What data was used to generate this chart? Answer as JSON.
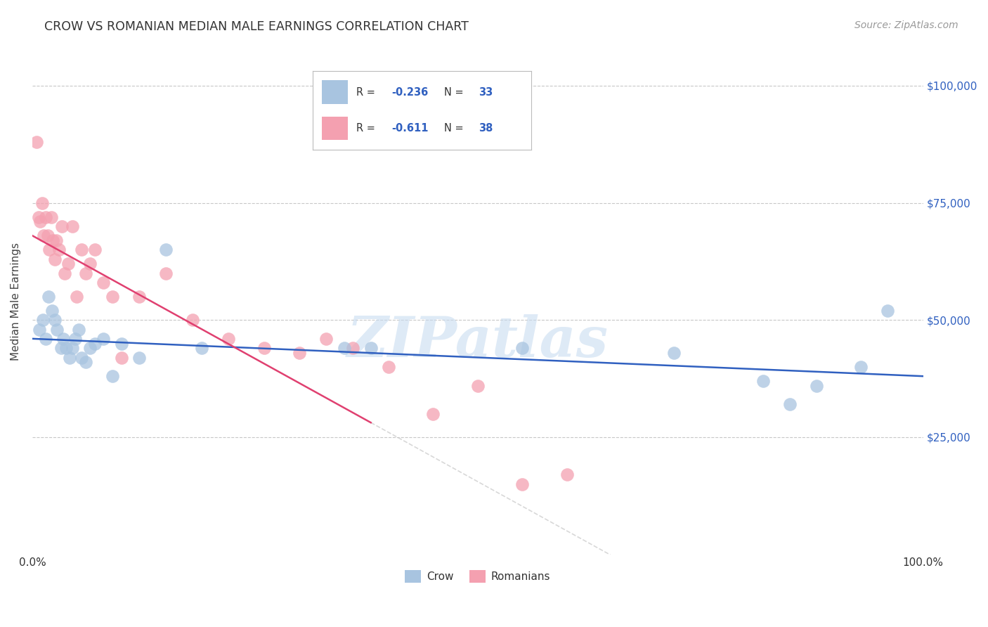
{
  "title": "CROW VS ROMANIAN MEDIAN MALE EARNINGS CORRELATION CHART",
  "source": "Source: ZipAtlas.com",
  "ylabel": "Median Male Earnings",
  "background_color": "#ffffff",
  "grid_color": "#c8c8c8",
  "crow_color": "#a8c4e0",
  "romanian_color": "#f4a0b0",
  "crow_line_color": "#3060c0",
  "romanian_line_color": "#e04070",
  "crow_R": "-0.236",
  "crow_N": "33",
  "romanian_R": "-0.611",
  "romanian_N": "38",
  "watermark": "ZIPatlas",
  "crow_points_x": [
    0.008,
    0.012,
    0.015,
    0.018,
    0.022,
    0.025,
    0.028,
    0.032,
    0.035,
    0.038,
    0.042,
    0.045,
    0.048,
    0.052,
    0.055,
    0.06,
    0.065,
    0.07,
    0.08,
    0.09,
    0.1,
    0.12,
    0.15,
    0.19,
    0.35,
    0.38,
    0.55,
    0.72,
    0.82,
    0.85,
    0.88,
    0.93,
    0.96
  ],
  "crow_points_y": [
    48000,
    50000,
    46000,
    55000,
    52000,
    50000,
    48000,
    44000,
    46000,
    44000,
    42000,
    44000,
    46000,
    48000,
    42000,
    41000,
    44000,
    45000,
    46000,
    38000,
    45000,
    42000,
    65000,
    44000,
    44000,
    44000,
    44000,
    43000,
    37000,
    32000,
    36000,
    40000,
    52000
  ],
  "romanian_points_x": [
    0.005,
    0.007,
    0.009,
    0.011,
    0.013,
    0.015,
    0.017,
    0.019,
    0.021,
    0.023,
    0.025,
    0.027,
    0.03,
    0.033,
    0.036,
    0.04,
    0.045,
    0.05,
    0.055,
    0.06,
    0.065,
    0.07,
    0.08,
    0.09,
    0.1,
    0.12,
    0.15,
    0.18,
    0.22,
    0.26,
    0.3,
    0.33,
    0.36,
    0.4,
    0.45,
    0.5,
    0.55,
    0.6
  ],
  "romanian_points_y": [
    88000,
    72000,
    71000,
    75000,
    68000,
    72000,
    68000,
    65000,
    72000,
    67000,
    63000,
    67000,
    65000,
    70000,
    60000,
    62000,
    70000,
    55000,
    65000,
    60000,
    62000,
    65000,
    58000,
    55000,
    42000,
    55000,
    60000,
    50000,
    46000,
    44000,
    43000,
    46000,
    44000,
    40000,
    30000,
    36000,
    15000,
    17000
  ]
}
